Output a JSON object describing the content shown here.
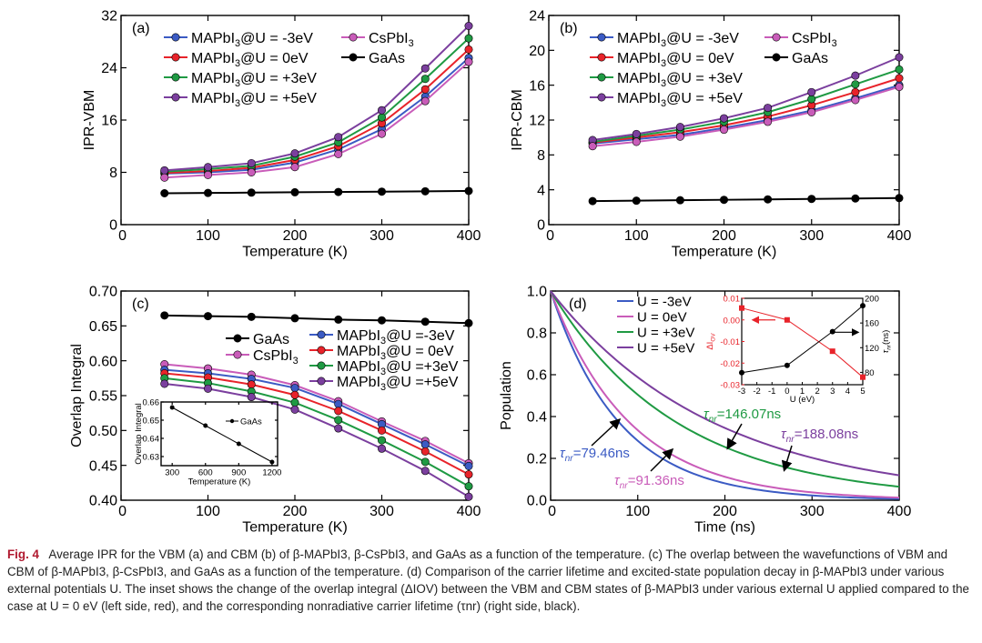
{
  "colors": {
    "MAPbI3@U = -3eV": "#3b5bc4",
    "MAPbI3@U = 0eV": "#e8232a",
    "MAPbI3@U = +3eV": "#1f9a43",
    "MAPbI3@U = +5eV": "#7b3f9e",
    "CsPbI3": "#c95cb9",
    "GaAs": "#000000"
  },
  "chart_data": [
    {
      "panel": "(a)",
      "type": "line",
      "xlabel": "Temperature (K)",
      "ylabel": "IPR-VBM",
      "xlim": [
        0,
        400
      ],
      "ylim": [
        0,
        32
      ],
      "xticks": [
        0,
        100,
        200,
        300,
        400
      ],
      "yticks": [
        0,
        8,
        16,
        24,
        32
      ],
      "x": [
        50,
        100,
        150,
        200,
        250,
        300,
        350,
        400
      ],
      "series": [
        {
          "name": "MAPbI3@U = -3eV",
          "key": "MAPbI3@U = -3eV",
          "values": [
            7.8,
            8.0,
            8.4,
            9.5,
            11.5,
            14.6,
            19.6,
            25.5
          ]
        },
        {
          "name": "MAPbI3@U = 0eV",
          "key": "MAPbI3@U = 0eV",
          "values": [
            7.9,
            8.2,
            8.7,
            9.9,
            12.0,
            15.5,
            20.7,
            26.8
          ]
        },
        {
          "name": "MAPbI3@U = +3eV",
          "key": "MAPbI3@U = +3eV",
          "values": [
            8.1,
            8.5,
            9.0,
            10.4,
            12.6,
            16.4,
            22.3,
            28.5
          ]
        },
        {
          "name": "MAPbI3@U = +5eV",
          "key": "MAPbI3@U = +5eV",
          "values": [
            8.3,
            8.8,
            9.4,
            10.9,
            13.4,
            17.5,
            23.9,
            30.4
          ]
        },
        {
          "name": "CsPbI3",
          "key": "CsPbI3",
          "values": [
            7.2,
            7.6,
            8.0,
            8.8,
            10.8,
            13.9,
            18.9,
            24.9
          ]
        },
        {
          "name": "GaAs",
          "key": "GaAs",
          "values": [
            4.8,
            4.85,
            4.9,
            4.95,
            5.0,
            5.05,
            5.1,
            5.15
          ]
        }
      ]
    },
    {
      "panel": "(b)",
      "type": "line",
      "xlabel": "Temperature (K)",
      "ylabel": "IPR-CBM",
      "xlim": [
        0,
        400
      ],
      "ylim": [
        0,
        24
      ],
      "xticks": [
        0,
        100,
        200,
        300,
        400
      ],
      "yticks": [
        0,
        4,
        8,
        12,
        16,
        20,
        24
      ],
      "x": [
        50,
        100,
        150,
        200,
        250,
        300,
        350,
        400
      ],
      "series": [
        {
          "name": "MAPbI3@U = -3eV",
          "key": "MAPbI3@U = -3eV",
          "values": [
            9.3,
            9.8,
            10.3,
            11.1,
            12.0,
            13.1,
            14.5,
            16.0
          ]
        },
        {
          "name": "MAPbI3@U = 0eV",
          "key": "MAPbI3@U = 0eV",
          "values": [
            9.4,
            10.0,
            10.6,
            11.4,
            12.4,
            13.7,
            15.2,
            16.8
          ]
        },
        {
          "name": "MAPbI3@U = +3eV",
          "key": "MAPbI3@U = +3eV",
          "values": [
            9.5,
            10.2,
            10.9,
            11.8,
            12.9,
            14.4,
            16.1,
            17.8
          ]
        },
        {
          "name": "MAPbI3@U = +5eV",
          "key": "MAPbI3@U = +5eV",
          "values": [
            9.7,
            10.4,
            11.2,
            12.2,
            13.4,
            15.2,
            17.1,
            19.2
          ]
        },
        {
          "name": "CsPbI3",
          "key": "CsPbI3",
          "values": [
            9.0,
            9.5,
            10.1,
            10.9,
            11.8,
            12.9,
            14.3,
            15.8
          ]
        },
        {
          "name": "GaAs",
          "key": "GaAs",
          "values": [
            2.7,
            2.75,
            2.8,
            2.85,
            2.9,
            2.95,
            3.0,
            3.05
          ]
        }
      ]
    },
    {
      "panel": "(c)",
      "type": "line",
      "xlabel": "Temperature (K)",
      "ylabel": "Overlap Integral",
      "xlim": [
        0,
        400
      ],
      "ylim": [
        0.4,
        0.7
      ],
      "xticks": [
        0,
        100,
        200,
        300,
        400
      ],
      "yticks": [
        0.4,
        0.45,
        0.5,
        0.55,
        0.6,
        0.65,
        0.7
      ],
      "ytick_labels": [
        "0.40",
        "0.45",
        "0.50",
        "0.55",
        "0.60",
        "0.65",
        "0.70"
      ],
      "x": [
        50,
        100,
        150,
        200,
        250,
        300,
        350,
        400
      ],
      "series": [
        {
          "name": "GaAs",
          "key": "GaAs",
          "values": [
            0.665,
            0.664,
            0.663,
            0.661,
            0.659,
            0.658,
            0.656,
            0.654
          ]
        },
        {
          "name": "CsPbI3",
          "key": "CsPbI3",
          "values": [
            0.595,
            0.589,
            0.58,
            0.565,
            0.542,
            0.513,
            0.485,
            0.453
          ]
        },
        {
          "name": "MAPbI3@U =-3eV",
          "key": "MAPbI3@U = -3eV",
          "values": [
            0.587,
            0.582,
            0.574,
            0.561,
            0.538,
            0.509,
            0.48,
            0.449
          ]
        },
        {
          "name": "MAPbI3@U = 0eV",
          "key": "MAPbI3@U = 0eV",
          "values": [
            0.582,
            0.576,
            0.566,
            0.551,
            0.528,
            0.5,
            0.47,
            0.437
          ]
        },
        {
          "name": "MAPbI3@U =+3eV",
          "key": "MAPbI3@U = +3eV",
          "values": [
            0.575,
            0.568,
            0.556,
            0.54,
            0.515,
            0.486,
            0.455,
            0.42
          ]
        },
        {
          "name": "MAPbI3@U =+5eV",
          "key": "MAPbI3@U = +5eV",
          "values": [
            0.567,
            0.56,
            0.548,
            0.53,
            0.503,
            0.474,
            0.442,
            0.405
          ]
        }
      ],
      "inset": {
        "type": "line",
        "xlabel": "Temperature (K)",
        "ylabel": "Overlap Integral",
        "xlim": [
          200,
          1250
        ],
        "ylim": [
          0.625,
          0.66
        ],
        "xticks": [
          300,
          600,
          900,
          1200
        ],
        "yticks": [
          0.63,
          0.64,
          0.65,
          0.66
        ],
        "ytick_labels": [
          "0.63",
          "0.64",
          "0.65",
          "0.66"
        ],
        "x": [
          300,
          600,
          900,
          1200
        ],
        "series": [
          {
            "name": "GaAs",
            "key": "GaAs",
            "values": [
              0.657,
              0.647,
              0.637,
              0.627
            ]
          }
        ]
      }
    },
    {
      "panel": "(d)",
      "type": "line",
      "xlabel": "Time (ns)",
      "ylabel": "Population",
      "xlim": [
        0,
        400
      ],
      "ylim": [
        0,
        1.0
      ],
      "xticks": [
        0,
        100,
        200,
        300,
        400
      ],
      "yticks": [
        0,
        0.2,
        0.4,
        0.6,
        0.8,
        1.0
      ],
      "ytick_labels": [
        "0.0",
        "0.2",
        "0.4",
        "0.6",
        "0.8",
        "1.0"
      ],
      "x": [
        0,
        25,
        50,
        75,
        100,
        125,
        150,
        175,
        200,
        225,
        250,
        275,
        300,
        325,
        350,
        375,
        400
      ],
      "series": [
        {
          "name": "U = -3eV",
          "key": "MAPbI3@U = -3eV",
          "lifetime_ns": 79.46
        },
        {
          "name": "U = 0eV",
          "key": "CsPbI3",
          "lifetime_ns": 91.36
        },
        {
          "name": "U = +3eV",
          "key": "MAPbI3@U = +3eV",
          "lifetime_ns": 146.07
        },
        {
          "name": "U = +5eV",
          "key": "MAPbI3@U = +5eV",
          "lifetime_ns": 188.08
        }
      ],
      "annotations": [
        "τnr=79.46ns",
        "τnr=91.36ns",
        "τnr=146.07ns",
        "τnr=188.08ns"
      ],
      "inset": {
        "type": "line",
        "xlabel": "U (eV)",
        "ylabel_left": "ΔIOV",
        "ylabel_right": "τnr(ns)",
        "x": [
          -3,
          0,
          3,
          5
        ],
        "xticks": [
          -3,
          -2,
          -1,
          0,
          1,
          2,
          3,
          4,
          5
        ],
        "xlim": [
          -3,
          5
        ],
        "ylim_left": [
          -0.03,
          0.01
        ],
        "yticks_left": [
          -0.03,
          -0.02,
          -0.01,
          0.0,
          0.01
        ],
        "ytick_labels_left": [
          "-0.03",
          "-0.02",
          "-0.01",
          "0.00",
          "0.01"
        ],
        "ylim_right": [
          60,
          200
        ],
        "yticks_right": [
          80,
          120,
          160,
          200
        ],
        "series": [
          {
            "axis": "left",
            "color": "#e8232a",
            "values": [
              0.0055,
              0.0,
              -0.0145,
              -0.0265
            ]
          },
          {
            "axis": "right",
            "color": "#000000",
            "values": [
              79.46,
              91.36,
              146.07,
              188.08
            ]
          }
        ]
      }
    }
  ],
  "caption": {
    "label": "Fig. 4",
    "text": "Average IPR for the VBM (a) and CBM (b) of β-MAPbI3, β-CsPbI3, and GaAs as a function of the temperature. (c) The overlap between the wavefunctions of VBM and CBM of β-MAPbI3, β-CsPbI3, and GaAs as a function of the temperature. (d) Comparison of the carrier lifetime and excited-state population decay in β-MAPbI3 under various external potentials U. The inset shows the change of the overlap integral (ΔIOV) between the VBM and CBM states of β-MAPbI3 under various external U applied compared to the case at U = 0 eV (left side, red), and the corresponding nonradiative carrier lifetime (τnr) (right side, black)."
  }
}
